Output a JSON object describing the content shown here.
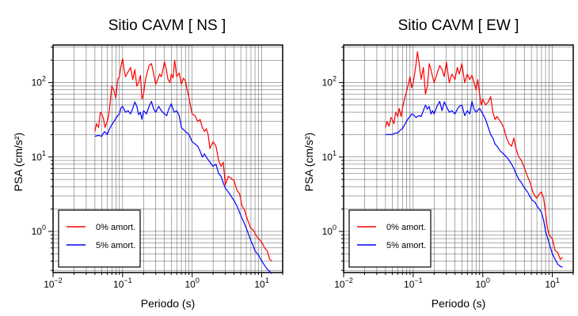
{
  "chart_data": [
    {
      "type": "line",
      "title": "Sitio CAVM [ NS ]",
      "xlabel": "Periodo (s)",
      "ylabel": "PSA (cm/s²)",
      "xscale": "log",
      "yscale": "log",
      "xlim": [
        0.01,
        20
      ],
      "ylim": [
        0.28,
        320
      ],
      "grid": true,
      "legend_position": "bottom-left",
      "xticks": [
        {
          "value": 0.01,
          "base": "10",
          "exp": "−2"
        },
        {
          "value": 0.1,
          "base": "10",
          "exp": "−1"
        },
        {
          "value": 1,
          "base": "10",
          "exp": "0"
        },
        {
          "value": 10,
          "base": "10",
          "exp": "1"
        }
      ],
      "yticks": [
        {
          "value": 1,
          "base": "10",
          "exp": "0"
        },
        {
          "value": 10,
          "base": "10",
          "exp": "1"
        },
        {
          "value": 100,
          "base": "10",
          "exp": "2"
        }
      ],
      "series": [
        {
          "name": "0% amort.",
          "color": "#ff0000",
          "x": [
            0.04,
            0.042,
            0.045,
            0.048,
            0.05,
            0.053,
            0.056,
            0.06,
            0.063,
            0.067,
            0.07,
            0.075,
            0.08,
            0.085,
            0.09,
            0.095,
            0.1,
            0.105,
            0.11,
            0.12,
            0.13,
            0.14,
            0.15,
            0.16,
            0.17,
            0.18,
            0.19,
            0.2,
            0.21,
            0.22,
            0.24,
            0.26,
            0.28,
            0.3,
            0.32,
            0.34,
            0.36,
            0.38,
            0.4,
            0.42,
            0.45,
            0.48,
            0.5,
            0.53,
            0.56,
            0.6,
            0.65,
            0.7,
            0.75,
            0.8,
            0.85,
            0.9,
            0.95,
            1.0,
            1.1,
            1.2,
            1.3,
            1.4,
            1.5,
            1.6,
            1.7,
            1.8,
            2.0,
            2.2,
            2.4,
            2.6,
            2.8,
            3.0,
            3.3,
            3.6,
            4.0,
            4.4,
            4.8,
            5.2,
            5.6,
            6.0,
            6.5,
            7.0,
            7.5,
            8.0,
            8.5,
            9.0,
            10.0,
            11.0,
            12.0,
            13.0,
            14.0
          ],
          "y": [
            22,
            28,
            25,
            40,
            38,
            33,
            25,
            30,
            36,
            60,
            90,
            78,
            62,
            110,
            120,
            170,
            210,
            150,
            120,
            140,
            160,
            110,
            150,
            90,
            100,
            125,
            60,
            70,
            100,
            125,
            170,
            180,
            130,
            95,
            110,
            130,
            120,
            150,
            190,
            160,
            110,
            100,
            130,
            115,
            200,
            120,
            135,
            95,
            115,
            105,
            80,
            62,
            48,
            38,
            36,
            30,
            32,
            25,
            22,
            24,
            20,
            13,
            16,
            14,
            9,
            7.5,
            8.5,
            4.2,
            5.5,
            5.2,
            4.8,
            3.6,
            3.2,
            2.2,
            2.0,
            1.6,
            1.3,
            1.1,
            1.05,
            0.95,
            0.85,
            0.8,
            0.72,
            0.6,
            0.55,
            0.42,
            0.4
          ]
        },
        {
          "name": "5% amort.",
          "color": "#0000ff",
          "x": [
            0.04,
            0.045,
            0.05,
            0.055,
            0.06,
            0.065,
            0.07,
            0.075,
            0.08,
            0.085,
            0.09,
            0.095,
            0.1,
            0.11,
            0.12,
            0.13,
            0.14,
            0.15,
            0.16,
            0.17,
            0.18,
            0.19,
            0.2,
            0.22,
            0.24,
            0.26,
            0.28,
            0.3,
            0.33,
            0.36,
            0.4,
            0.43,
            0.46,
            0.5,
            0.55,
            0.6,
            0.65,
            0.7,
            0.8,
            0.9,
            1.0,
            1.1,
            1.2,
            1.3,
            1.4,
            1.5,
            1.6,
            1.8,
            2.0,
            2.2,
            2.4,
            2.6,
            2.8,
            3.0,
            3.3,
            3.6,
            4.0,
            4.4,
            4.8,
            5.2,
            5.6,
            6.0,
            6.5,
            7.0,
            7.5,
            8.0,
            9.0,
            10.0,
            11.0,
            12.0,
            13.0,
            14.0
          ],
          "y": [
            19,
            19.5,
            19,
            22,
            20,
            24,
            27,
            30,
            33,
            36,
            38,
            46,
            48,
            40,
            42,
            38,
            45,
            55,
            48,
            37,
            40,
            32,
            42,
            38,
            48,
            56,
            44,
            40,
            48,
            42,
            38,
            36,
            44,
            52,
            40,
            42,
            36,
            25,
            22,
            20,
            16,
            15,
            14,
            12,
            10,
            11,
            10,
            8.5,
            7.5,
            8,
            6,
            5.5,
            4.5,
            3.8,
            3.4,
            3,
            2.6,
            2.2,
            1.8,
            1.5,
            1.3,
            1.1,
            0.9,
            0.75,
            0.65,
            0.55,
            0.48,
            0.4,
            0.35,
            0.31,
            0.29,
            0.27
          ]
        }
      ]
    },
    {
      "type": "line",
      "title": "Sitio CAVM [ EW ]",
      "xlabel": "Periodo (s)",
      "ylabel": "PSA (cm/s²)",
      "xscale": "log",
      "yscale": "log",
      "xlim": [
        0.01,
        20
      ],
      "ylim": [
        0.28,
        320
      ],
      "grid": true,
      "legend_position": "bottom-left",
      "xticks": [
        {
          "value": 0.01,
          "base": "10",
          "exp": "−2"
        },
        {
          "value": 0.1,
          "base": "10",
          "exp": "−1"
        },
        {
          "value": 1,
          "base": "10",
          "exp": "0"
        },
        {
          "value": 10,
          "base": "10",
          "exp": "1"
        }
      ],
      "yticks": [
        {
          "value": 1,
          "base": "10",
          "exp": "0"
        },
        {
          "value": 10,
          "base": "10",
          "exp": "1"
        },
        {
          "value": 100,
          "base": "10",
          "exp": "2"
        }
      ],
      "series": [
        {
          "name": "0% amort.",
          "color": "#ff0000",
          "x": [
            0.04,
            0.042,
            0.045,
            0.048,
            0.05,
            0.053,
            0.056,
            0.06,
            0.063,
            0.067,
            0.07,
            0.075,
            0.08,
            0.085,
            0.09,
            0.095,
            0.1,
            0.105,
            0.11,
            0.115,
            0.12,
            0.13,
            0.14,
            0.15,
            0.16,
            0.17,
            0.18,
            0.19,
            0.2,
            0.22,
            0.24,
            0.26,
            0.28,
            0.3,
            0.33,
            0.36,
            0.4,
            0.43,
            0.46,
            0.5,
            0.55,
            0.6,
            0.65,
            0.7,
            0.75,
            0.8,
            0.85,
            0.9,
            0.95,
            1.0,
            1.1,
            1.2,
            1.3,
            1.4,
            1.5,
            1.6,
            1.8,
            2.0,
            2.2,
            2.4,
            2.6,
            2.8,
            3.0,
            3.3,
            3.6,
            4.0,
            4.4,
            4.8,
            5.2,
            5.6,
            6.0,
            6.5,
            7.0,
            7.5,
            8.0,
            8.5,
            9.0,
            10.0,
            11.0,
            12.0,
            13.0,
            14.0
          ],
          "y": [
            25,
            30,
            26,
            34,
            32,
            28,
            40,
            35,
            45,
            35,
            45,
            60,
            75,
            95,
            120,
            85,
            100,
            130,
            180,
            260,
            200,
            110,
            160,
            70,
            90,
            180,
            150,
            120,
            100,
            130,
            170,
            150,
            120,
            190,
            100,
            130,
            110,
            160,
            130,
            180,
            100,
            130,
            110,
            125,
            100,
            80,
            110,
            70,
            50,
            60,
            50,
            55,
            65,
            40,
            32,
            35,
            30,
            25,
            18,
            15,
            14,
            18,
            13,
            10,
            9,
            7,
            5.5,
            4.5,
            3.5,
            3,
            2.8,
            3.2,
            3.4,
            2.8,
            1.8,
            1.1,
            0.9,
            0.8,
            0.55,
            0.52,
            0.42,
            0.45
          ]
        },
        {
          "name": "5% amort.",
          "color": "#0000ff",
          "x": [
            0.04,
            0.045,
            0.05,
            0.055,
            0.06,
            0.065,
            0.07,
            0.075,
            0.08,
            0.085,
            0.09,
            0.095,
            0.1,
            0.11,
            0.12,
            0.13,
            0.14,
            0.15,
            0.16,
            0.17,
            0.18,
            0.19,
            0.2,
            0.22,
            0.24,
            0.26,
            0.28,
            0.3,
            0.33,
            0.36,
            0.4,
            0.43,
            0.46,
            0.5,
            0.55,
            0.6,
            0.65,
            0.7,
            0.75,
            0.8,
            0.9,
            1.0,
            1.1,
            1.2,
            1.3,
            1.4,
            1.5,
            1.6,
            1.8,
            2.0,
            2.2,
            2.4,
            2.6,
            2.8,
            3.0,
            3.3,
            3.6,
            4.0,
            4.4,
            4.8,
            5.2,
            5.6,
            6.0,
            6.5,
            7.0,
            7.5,
            8.0,
            9.0,
            10.0,
            11.0,
            12.0,
            13.0,
            14.0
          ],
          "y": [
            20,
            20,
            20,
            21,
            21,
            23,
            24,
            27,
            30,
            33,
            35,
            38,
            37,
            34,
            36,
            35,
            42,
            50,
            44,
            48,
            38,
            42,
            38,
            48,
            56,
            42,
            55,
            48,
            40,
            42,
            38,
            44,
            48,
            50,
            36,
            42,
            38,
            56,
            44,
            40,
            45,
            38,
            32,
            25,
            20,
            18,
            15,
            14,
            12,
            11,
            10,
            9,
            8,
            7,
            6,
            5,
            4.5,
            3.8,
            3.4,
            2.9,
            2.6,
            2.5,
            2.2,
            2.0,
            1.8,
            1.4,
            1.0,
            0.7,
            0.5,
            0.42,
            0.36,
            0.34,
            0.33
          ]
        }
      ]
    }
  ]
}
